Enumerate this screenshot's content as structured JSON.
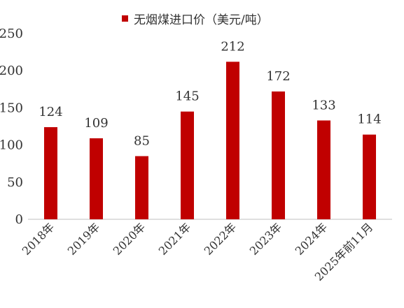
{
  "chart_data": {
    "type": "bar",
    "title": "",
    "xlabel": "",
    "ylabel": "",
    "categories": [
      "2018年",
      "2019年",
      "2020年",
      "2021年",
      "2022年",
      "2023年",
      "2024年",
      "2025年前11月"
    ],
    "series": [
      {
        "name": "无烟煤进口价（美元/吨）",
        "values": [
          124,
          109,
          85,
          145,
          212,
          172,
          133,
          114
        ]
      }
    ],
    "ylim": [
      0,
      250
    ],
    "yticks": [
      "0",
      "50",
      "100",
      "150",
      "200",
      "250"
    ],
    "data_labels": [
      "124",
      "109",
      "85",
      "145",
      "212",
      "172",
      "133",
      "114"
    ],
    "grid": false,
    "legend_position": "top-center",
    "bar_color": "#c00000"
  }
}
